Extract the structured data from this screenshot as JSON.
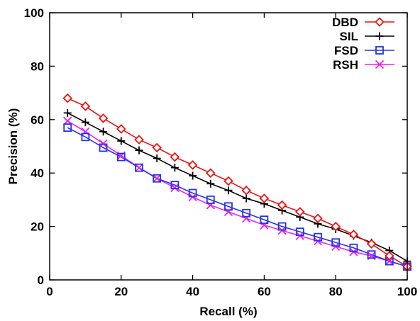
{
  "chart_data": {
    "type": "line",
    "xlabel": "Recall (%)",
    "ylabel": "Precision (%)",
    "xlim": [
      0,
      100
    ],
    "ylim": [
      0,
      100
    ],
    "xticks": [
      0,
      20,
      40,
      60,
      80,
      100
    ],
    "yticks": [
      0,
      20,
      40,
      60,
      80,
      100
    ],
    "grid": false,
    "legend_position": "top-right",
    "x": [
      5,
      10,
      15,
      20,
      25,
      30,
      35,
      40,
      45,
      50,
      55,
      60,
      65,
      70,
      75,
      80,
      85,
      90,
      95,
      100
    ],
    "series": [
      {
        "name": "DBD",
        "color": "#ee1111",
        "marker": "diamond",
        "values": [
          68,
          65,
          60.5,
          56.5,
          52.5,
          49.5,
          46,
          43,
          40,
          37,
          33.5,
          30.5,
          28,
          25.5,
          23,
          20,
          17,
          13.5,
          9,
          5
        ]
      },
      {
        "name": "SIL",
        "color": "#000000",
        "marker": "plus",
        "values": [
          62.5,
          59,
          55.5,
          52,
          48.5,
          45.5,
          42,
          39,
          36,
          33.5,
          30.5,
          28.5,
          26,
          23.5,
          21,
          19,
          16.5,
          14,
          11,
          7
        ]
      },
      {
        "name": "FSD",
        "color": "#2233ee",
        "marker": "square",
        "values": [
          57,
          53.5,
          49.5,
          46,
          42,
          38,
          35.5,
          32.5,
          30,
          27.5,
          25,
          22.5,
          20,
          18,
          16,
          14,
          12,
          9.5,
          7,
          5
        ]
      },
      {
        "name": "RSH",
        "color": "#ee22ee",
        "marker": "x",
        "values": [
          59.5,
          55.5,
          51,
          46.5,
          42,
          38,
          34.5,
          31,
          28,
          25.5,
          23,
          20.5,
          18.5,
          16.5,
          14.5,
          12.5,
          10.5,
          9,
          7,
          5
        ]
      }
    ]
  }
}
